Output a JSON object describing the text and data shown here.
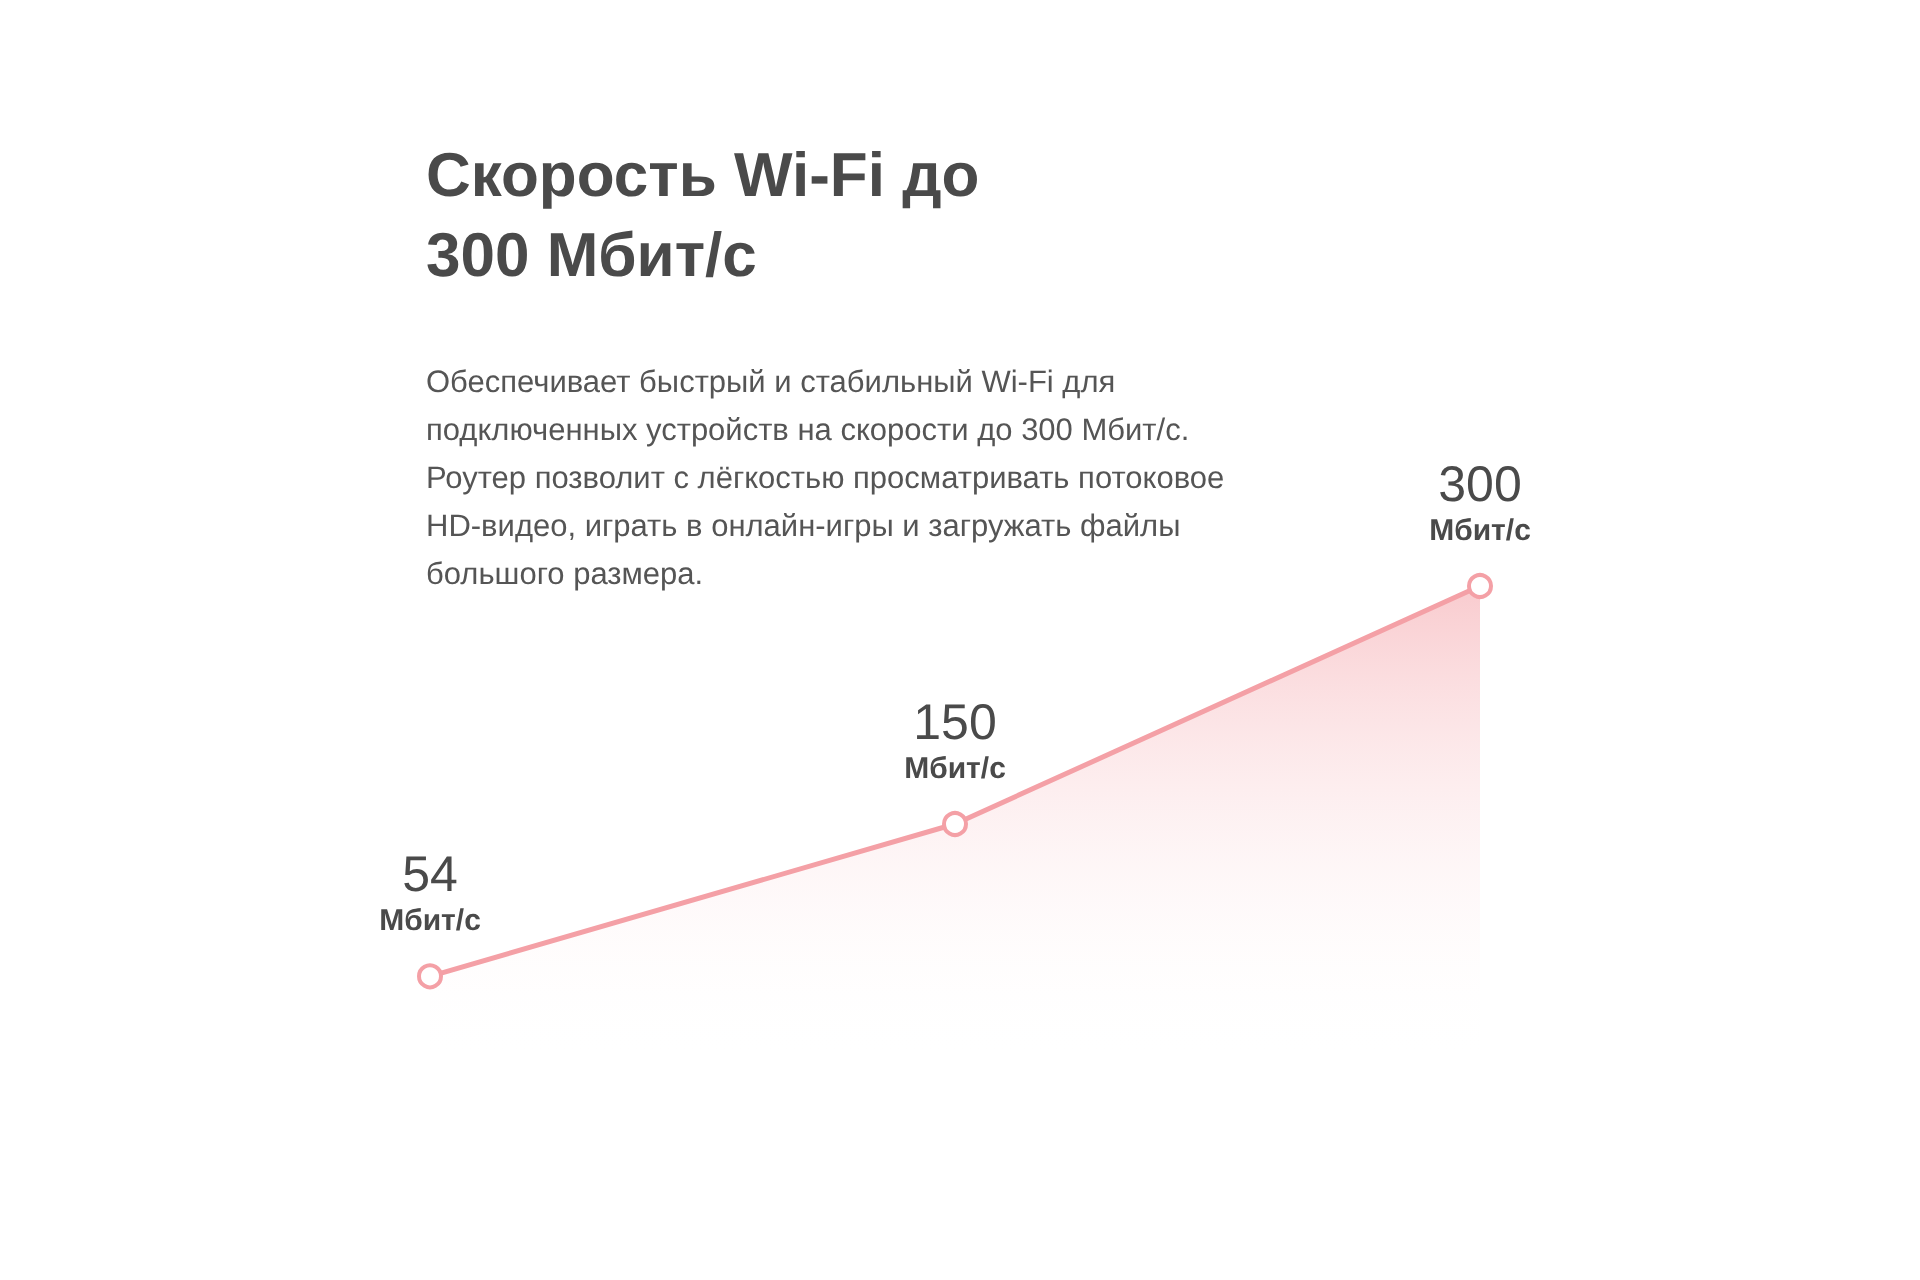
{
  "chart_data": {
    "type": "area",
    "title": "Скорость Wi-Fi до 300 Мбит/с",
    "subtitle": "Обеспечивает быстрый и стабильный Wi-Fi для подключенных устройств на скорости до 300 Мбит/с. Роутер позволит с лёгкостью просматривать потоковое HD-видео, играть в онлайн-игры и загружать файлы большого размера.",
    "categories": [
      null,
      null,
      null
    ],
    "series": [
      {
        "color": "#f4a0a6",
        "values": [
          54,
          150,
          300
        ],
        "value_labels": [
          "54 Мбит/с",
          "150 Мбит/с",
          "300 Мбит/с"
        ]
      }
    ],
    "marker": "circle"
  }
}
